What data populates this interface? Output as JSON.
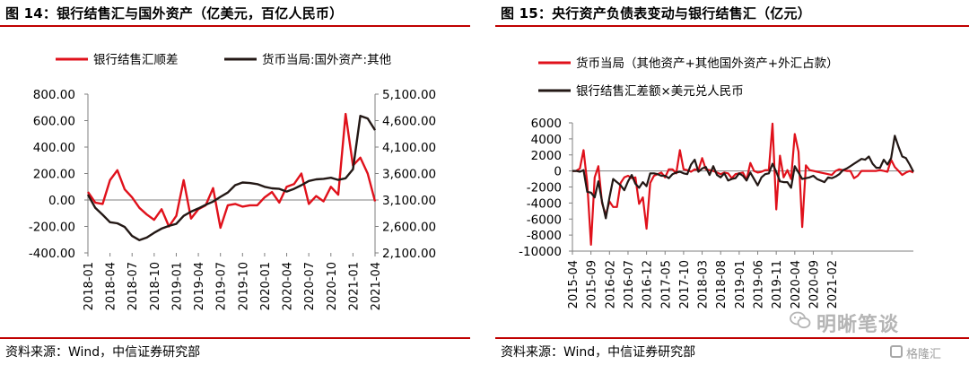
{
  "panels": [
    {
      "title": "图 14：银行结售汇与国外资产（亿美元，百亿人民币）",
      "source": "资料来源：Wind，中信证券研究部"
    },
    {
      "title": "图 15：央行资产负债表变动与银行结售汇（亿元）",
      "source": "资料来源：Wind，中信证券研究部"
    }
  ],
  "watermark": {
    "text": "明晰笔谈",
    "text2": "格隆汇"
  },
  "colors": {
    "red": "#e0111b",
    "black": "#231815",
    "rule": "#c00000",
    "axis": "#7f7f7f"
  },
  "chart_data": [
    {
      "type": "line",
      "title": "图 14：银行结售汇与国外资产（亿美元，百亿人民币）",
      "legend_position": "top",
      "x": [
        "2018-01",
        "2018-02",
        "2018-03",
        "2018-04",
        "2018-05",
        "2018-06",
        "2018-07",
        "2018-08",
        "2018-09",
        "2018-10",
        "2018-11",
        "2018-12",
        "2019-01",
        "2019-02",
        "2019-03",
        "2019-04",
        "2019-05",
        "2019-06",
        "2019-07",
        "2019-08",
        "2019-09",
        "2019-10",
        "2019-11",
        "2019-12",
        "2020-01",
        "2020-02",
        "2020-03",
        "2020-04",
        "2020-05",
        "2020-06",
        "2020-07",
        "2020-08",
        "2020-09",
        "2020-10",
        "2020-11",
        "2020-12",
        "2021-01",
        "2021-02",
        "2021-03",
        "2021-04"
      ],
      "xticks": [
        "2018-01",
        "2018-04",
        "2018-07",
        "2018-10",
        "2019-01",
        "2019-04",
        "2019-07",
        "2019-10",
        "2020-01",
        "2020-04",
        "2020-07",
        "2020-10",
        "2021-01",
        "2021-04"
      ],
      "series": [
        {
          "name": "银行结售汇顺差",
          "axis": "left",
          "color": "#e0111b",
          "values": [
            60,
            -20,
            -30,
            150,
            225,
            80,
            20,
            -60,
            -110,
            -150,
            -70,
            -200,
            -120,
            150,
            -140,
            -70,
            -40,
            90,
            -210,
            -40,
            -30,
            -50,
            -40,
            -40,
            20,
            60,
            -20,
            100,
            120,
            200,
            -30,
            30,
            -10,
            100,
            40,
            650,
            260,
            320,
            200,
            -10
          ]
        },
        {
          "name": "货币当局:国外资产:其他",
          "axis": "right",
          "color": "#231815",
          "values": [
            3200,
            2950,
            2820,
            2680,
            2660,
            2590,
            2420,
            2340,
            2390,
            2480,
            2560,
            2610,
            2650,
            2800,
            2880,
            2940,
            3010,
            3070,
            3160,
            3240,
            3380,
            3430,
            3420,
            3400,
            3350,
            3320,
            3310,
            3260,
            3310,
            3380,
            3460,
            3490,
            3500,
            3520,
            3480,
            3510,
            3680,
            4690,
            4640,
            4420
          ]
        }
      ],
      "y_left": {
        "ticks": [
          "800.00",
          "600.00",
          "400.00",
          "200.00",
          "0.00",
          "-200.00",
          "-400.00"
        ],
        "ylim": [
          -400,
          800
        ]
      },
      "y_right": {
        "ticks": [
          "5,100.00",
          "4,600.00",
          "4,100.00",
          "3,600.00",
          "3,100.00",
          "2,600.00",
          "2,100.00"
        ],
        "ylim": [
          2100,
          5100
        ]
      },
      "grid": false
    },
    {
      "type": "line",
      "title": "图 15：央行资产负债表变动与银行结售汇（亿元）",
      "legend_position": "top",
      "x_start": "2015-04",
      "x_end": "2021-04",
      "xticks": [
        "2015-04",
        "2015-09",
        "2016-02",
        "2016-07",
        "2016-12",
        "2017-05",
        "2017-10",
        "2018-03",
        "2018-08",
        "2019-01",
        "2019-06",
        "2019-11",
        "2020-04",
        "2020-09",
        "2021-02"
      ],
      "series": [
        {
          "name": "货币当局（其他资产+其他国外资产+外汇占款）",
          "color": "#e0111b",
          "values": [
            0,
            0,
            300,
            2600,
            -1500,
            -9200,
            -800,
            600,
            -4000,
            -5500,
            -3800,
            -4500,
            -4500,
            -1500,
            -800,
            -600,
            -900,
            -800,
            -4100,
            -3300,
            -7200,
            -1500,
            -600,
            -400,
            -200,
            -800,
            200,
            200,
            -300,
            2600,
            200,
            100,
            -100,
            200,
            100,
            1600,
            200,
            100,
            0,
            -200,
            -400,
            -200,
            -300,
            -900,
            -400,
            -300,
            -200,
            -1100,
            1000,
            0,
            -200,
            -100,
            100,
            100,
            5900,
            -4800,
            1900,
            -800,
            100,
            -1000,
            4600,
            2400,
            -7000,
            700,
            100,
            0,
            -100,
            -200,
            -300,
            -400,
            -500,
            0,
            200,
            100,
            0,
            0,
            -900,
            -600,
            0,
            0,
            0,
            0,
            0,
            100,
            0,
            -100,
            1400,
            500,
            0,
            -500,
            -200,
            0,
            -200
          ]
        },
        {
          "name": "银行结售汇差额×美元兑人民币",
          "color": "#231815",
          "values": [
            0,
            0,
            -100,
            100,
            -2600,
            -2700,
            -3300,
            -1300,
            -3800,
            -5900,
            -3300,
            -1000,
            -1400,
            -1800,
            -2400,
            -1300,
            -500,
            -1600,
            -2100,
            -1400,
            -1900,
            -300,
            -300,
            -400,
            -600,
            -600,
            -900,
            -400,
            -200,
            -100,
            -300,
            -400,
            800,
            1400,
            -100,
            300,
            500,
            -500,
            600,
            -500,
            -800,
            -300,
            -1200,
            -1000,
            -900,
            -300,
            -600,
            -1200,
            -200,
            -1000,
            -1800,
            -800,
            -400,
            -300,
            900,
            -100,
            -1300,
            -1400,
            -1400,
            -2100,
            600,
            -200,
            -1000,
            -900,
            -800,
            -600,
            -1000,
            -1200,
            -1400,
            -800,
            -900,
            -700,
            -400,
            100,
            300,
            600,
            900,
            1200,
            1500,
            1400,
            1800,
            900,
            400,
            400,
            1400,
            800,
            1600,
            4400,
            3000,
            1800,
            1600,
            800,
            -100
          ]
        }
      ],
      "y": {
        "ticks": [
          "6000",
          "4000",
          "2000",
          "0",
          "-2000",
          "-4000",
          "-6000",
          "-8000",
          "-10000"
        ],
        "ylim": [
          -10000,
          6000
        ]
      },
      "grid": false
    }
  ]
}
